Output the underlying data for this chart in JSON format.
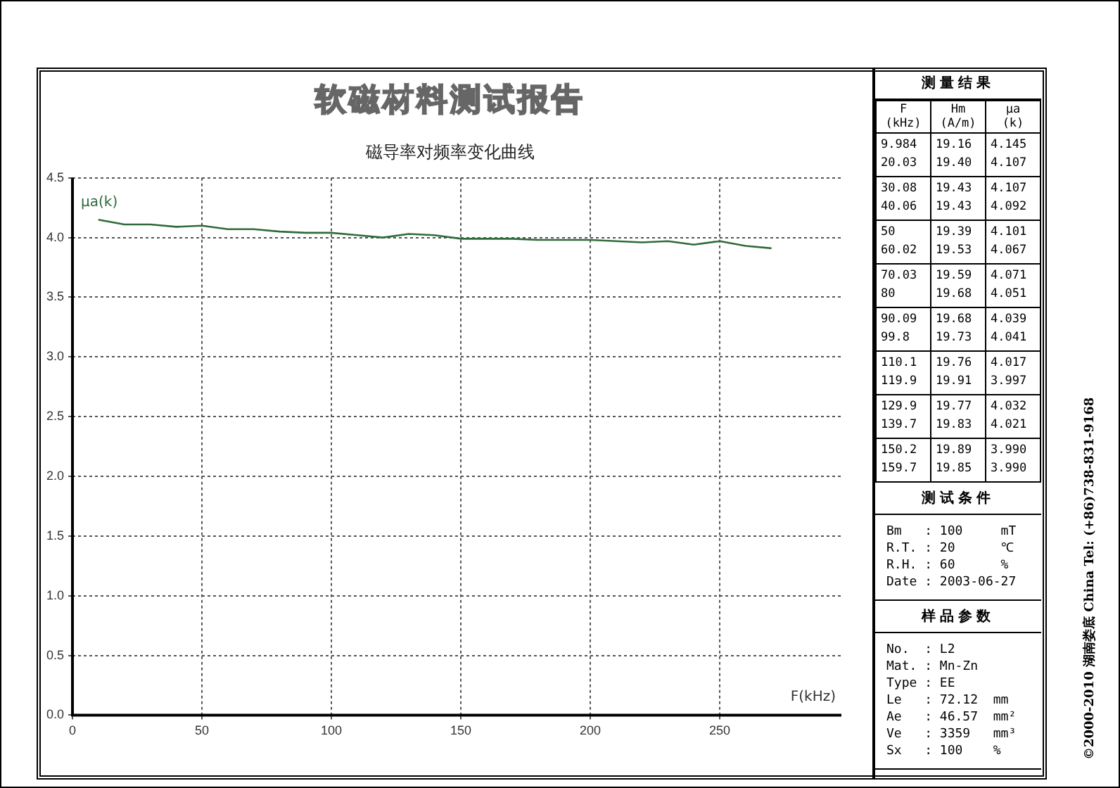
{
  "chart_data": [
    {
      "type": "line",
      "title": "软磁材料测试报告",
      "subtitle": "磁导率对频率变化曲线",
      "xlabel": "F(kHz)",
      "ylabel": "μa(k)",
      "series": [
        {
          "color": "#2f6b3c",
          "x": [
            9.984,
            20.03,
            30.08,
            40.06,
            50,
            60.02,
            70.03,
            80,
            90.09,
            99.8,
            110.1,
            119.9,
            129.9,
            139.7,
            150.2,
            159.7,
            170,
            180,
            190,
            200,
            210,
            220,
            230,
            240,
            250,
            260,
            270
          ],
          "values": [
            4.15,
            4.11,
            4.11,
            4.09,
            4.1,
            4.07,
            4.07,
            4.05,
            4.04,
            4.04,
            4.02,
            4.0,
            4.03,
            4.02,
            3.99,
            3.99,
            3.99,
            3.98,
            3.98,
            3.98,
            3.97,
            3.96,
            3.97,
            3.94,
            3.97,
            3.93,
            3.91
          ]
        }
      ],
      "xlim": [
        0,
        297
      ],
      "xticks": [
        0,
        50,
        100,
        150,
        200,
        250
      ],
      "ylim": [
        0,
        4.5
      ],
      "yticks": [
        {
          "value": 0,
          "label": "0.0"
        },
        0.5,
        {
          "value": 1,
          "label": "1.0"
        },
        1.5,
        {
          "value": 2,
          "label": "2.0"
        },
        2.5,
        {
          "value": 3,
          "label": "3.0"
        },
        3.5,
        {
          "value": 4,
          "label": "4.0"
        },
        4.5
      ],
      "grid": true,
      "legend": false,
      "marker": "none",
      "line_style": "solid",
      "annotations": [
        "©2000-2010 湖南娄底 China Tel: (+86)738-831-9168"
      ]
    },
    {
      "type": "other",
      "title": "测量结果",
      "categories": [
        "F\n(kHz)",
        "Hm\n(A/m)",
        "μa\n(k)"
      ],
      "cell_labels": [
        [
          "9.984\n20.03",
          "19.16\n19.40",
          "4.145\n4.107"
        ],
        [
          "30.08\n40.06",
          "19.43\n19.43",
          "4.107\n4.092"
        ],
        [
          "50\n60.02",
          "19.39\n19.53",
          "4.101\n4.067"
        ],
        [
          "70.03\n80",
          "19.59\n19.68",
          "4.071\n4.051"
        ],
        [
          "90.09\n99.8",
          "19.68\n19.73",
          "4.039\n4.041"
        ],
        [
          "110.1\n119.9",
          "19.76\n19.91",
          "4.017\n3.997"
        ],
        [
          "129.9\n139.7",
          "19.77\n19.83",
          "4.032\n4.021"
        ],
        [
          "150.2\n159.7",
          "19.89\n19.85",
          "3.990\n3.990"
        ]
      ]
    },
    {
      "type": "other",
      "title": "测试条件",
      "annotations": [
        "Bm   : 100     mT",
        "R.T. : 20      ℃",
        "R.H. : 60      %",
        "Date : 2003-06-27"
      ]
    },
    {
      "type": "other",
      "title": "样品参数",
      "annotations": [
        "No.  : L2",
        "Mat. : Mn-Zn",
        "Type : EE",
        "Le   : 72.12  mm",
        "Ae   : 46.57  mm²",
        "Ve   : 3359   mm³",
        "Sx   : 100    %"
      ]
    }
  ]
}
